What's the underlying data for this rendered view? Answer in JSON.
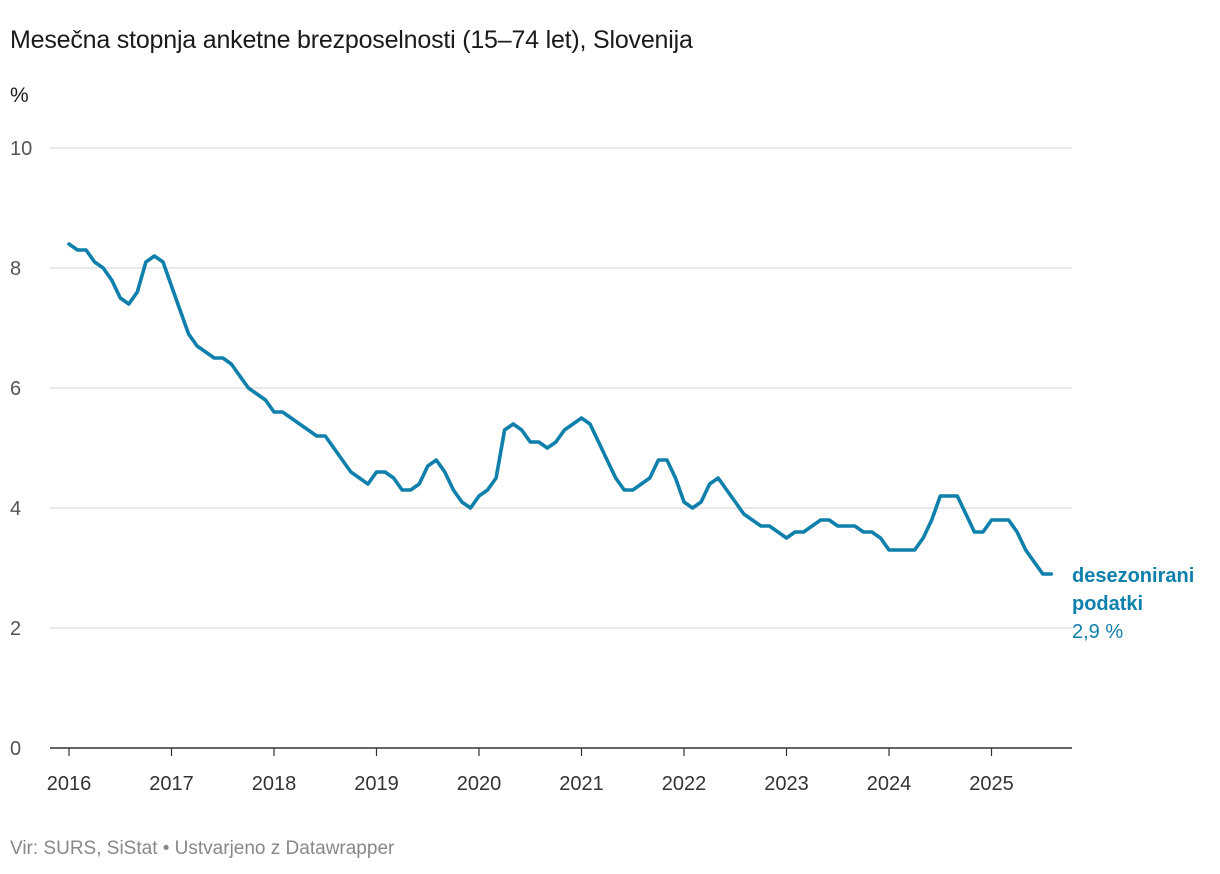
{
  "colors": {
    "line": "#0f7fac",
    "grid": "#d9d9d9",
    "axis": "#333333"
  },
  "footer": "Vir: SURS, SiStat • Ustvarjeno z Datawrapper",
  "chart_data": {
    "type": "line",
    "title": "Mesečna stopnja anketne brezposelnosti (15–74 let), Slovenija",
    "ylabel": "%",
    "xlabel": "",
    "ylim": [
      0,
      10
    ],
    "yticks": [
      0,
      2,
      4,
      6,
      8,
      10
    ],
    "x_start": "2016-01",
    "x_tick_labels": [
      "2016",
      "2017",
      "2018",
      "2019",
      "2020",
      "2021",
      "2022",
      "2023",
      "2024",
      "2025"
    ],
    "grid": true,
    "legend": "right-end label",
    "series": [
      {
        "name": "desezonirani podatki",
        "name_lines": [
          "desezonirani",
          "podatki"
        ],
        "last_value_label": "2,9 %",
        "values": [
          8.4,
          8.3,
          8.3,
          8.1,
          8.0,
          7.8,
          7.5,
          7.4,
          7.6,
          8.1,
          8.2,
          8.1,
          7.7,
          7.3,
          6.9,
          6.7,
          6.6,
          6.5,
          6.5,
          6.4,
          6.2,
          6.0,
          5.9,
          5.8,
          5.6,
          5.6,
          5.5,
          5.4,
          5.3,
          5.2,
          5.2,
          5.0,
          4.8,
          4.6,
          4.5,
          4.4,
          4.6,
          4.6,
          4.5,
          4.3,
          4.3,
          4.4,
          4.7,
          4.8,
          4.6,
          4.3,
          4.1,
          4.0,
          4.2,
          4.3,
          4.5,
          5.3,
          5.4,
          5.3,
          5.1,
          5.1,
          5.0,
          5.1,
          5.3,
          5.4,
          5.5,
          5.4,
          5.1,
          4.8,
          4.5,
          4.3,
          4.3,
          4.4,
          4.5,
          4.8,
          4.8,
          4.5,
          4.1,
          4.0,
          4.1,
          4.4,
          4.5,
          4.3,
          4.1,
          3.9,
          3.8,
          3.7,
          3.7,
          3.6,
          3.5,
          3.6,
          3.6,
          3.7,
          3.8,
          3.8,
          3.7,
          3.7,
          3.7,
          3.6,
          3.6,
          3.5,
          3.3,
          3.3,
          3.3,
          3.3,
          3.5,
          3.8,
          4.2,
          4.2,
          4.2,
          3.9,
          3.6,
          3.6,
          3.8,
          3.8,
          3.8,
          3.6,
          3.3,
          3.1,
          2.9,
          2.9
        ]
      }
    ]
  }
}
